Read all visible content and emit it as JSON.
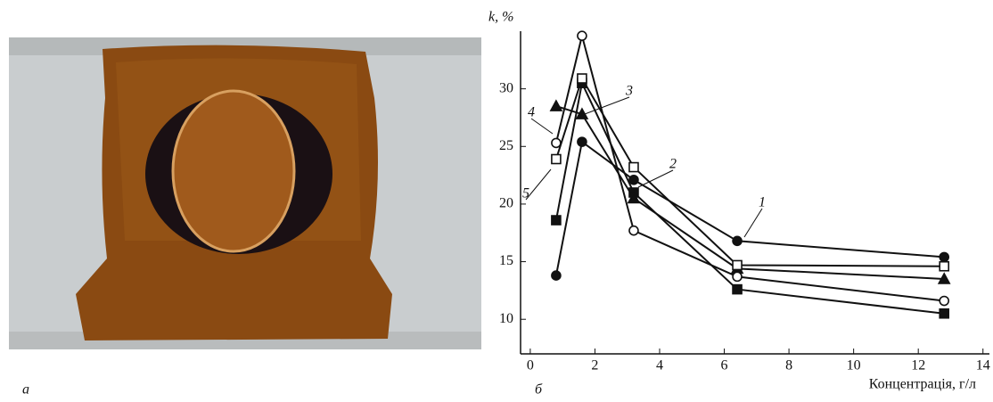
{
  "chart_data": {
    "type": "line",
    "panel_labels": [
      "а",
      "б"
    ],
    "ylabel": "k, %",
    "xlabel": "Концентрація, г/л",
    "x": [
      0.8,
      1.6,
      3.2,
      6.4,
      12.8
    ],
    "xlim": [
      -0.3,
      14.2
    ],
    "xticks": [
      0,
      2,
      4,
      6,
      8,
      10,
      12,
      14
    ],
    "ylim": [
      7,
      35
    ],
    "yticks": [
      10,
      15,
      20,
      25,
      30
    ],
    "series": [
      {
        "name": "1",
        "color": "#111111",
        "marker": "filled-circle",
        "values": [
          13.8,
          25.4,
          22.1,
          16.8,
          15.4
        ]
      },
      {
        "name": "2",
        "color": "#111111",
        "marker": "filled-square",
        "values": [
          18.6,
          30.5,
          21.0,
          12.6,
          10.5
        ]
      },
      {
        "name": "3",
        "color": "#111111",
        "marker": "filled-triangle",
        "values": [
          28.5,
          27.8,
          20.5,
          14.4,
          13.5
        ]
      },
      {
        "name": "4",
        "color": "#111111",
        "marker": "open-circle",
        "values": [
          25.3,
          34.6,
          17.7,
          13.7,
          11.6
        ]
      },
      {
        "name": "5",
        "color": "#111111",
        "marker": "open-square",
        "values": [
          23.9,
          30.9,
          23.2,
          14.7,
          14.6
        ]
      }
    ]
  }
}
